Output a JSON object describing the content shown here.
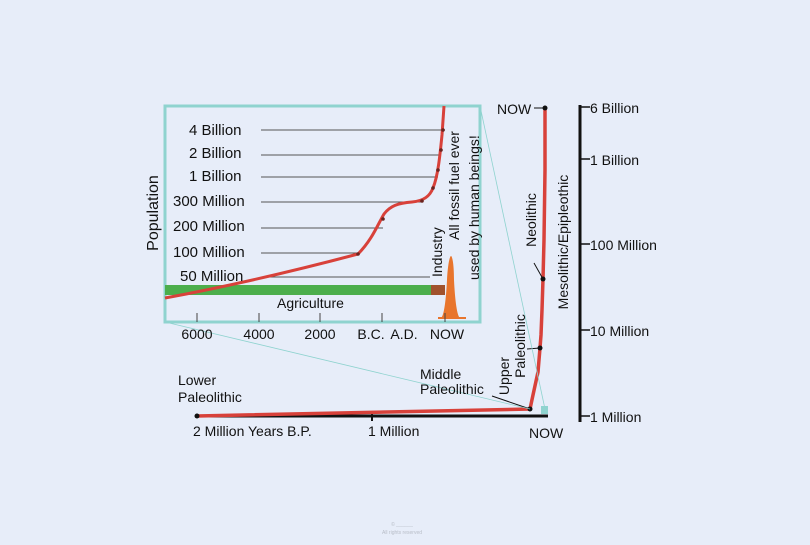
{
  "inset": {
    "y_axis_label": "Population",
    "population_labels": [
      "4 Billion",
      "2 Billion",
      "1 Billion",
      "300 Million",
      "200 Million",
      "100 Million",
      "50 Million"
    ],
    "agriculture_label": "Agriculture",
    "industry_label": "Industry",
    "fossil_fuel_line1": "All fossil fuel ever",
    "fossil_fuel_line2": "used by human beings!",
    "x_ticks": [
      "6000",
      "4000",
      "2000",
      "B.C.",
      "A.D.",
      "NOW"
    ]
  },
  "main": {
    "period_labels": {
      "lower_line1": "Lower",
      "lower_line2": "Paleolithic",
      "middle_line1": "Middle",
      "middle_line2": "Paleolithic",
      "upper_line1": "Upper",
      "upper_line2": "Paleolithic",
      "mesolithic": "Mesolithic/Epipleothic",
      "neolithic": "Neolithic",
      "now_top": "NOW"
    },
    "x_labels": [
      "2 Million Years B.P.",
      "1 Million",
      "NOW"
    ],
    "y_labels": [
      "6 Billion",
      "1 Billion",
      "100 Million",
      "10 Million",
      "1 Million"
    ]
  },
  "watermark": {
    "line1": "© ______",
    "line2": "All rights reserved"
  },
  "colors": {
    "curve": "#d8413a",
    "agriculture_bar": "#4cae4c",
    "industry_segment": "#a0522d",
    "fossil_peak": "#e8752d",
    "inset_border": "#8fd3cf",
    "background": "#e7edf9"
  }
}
